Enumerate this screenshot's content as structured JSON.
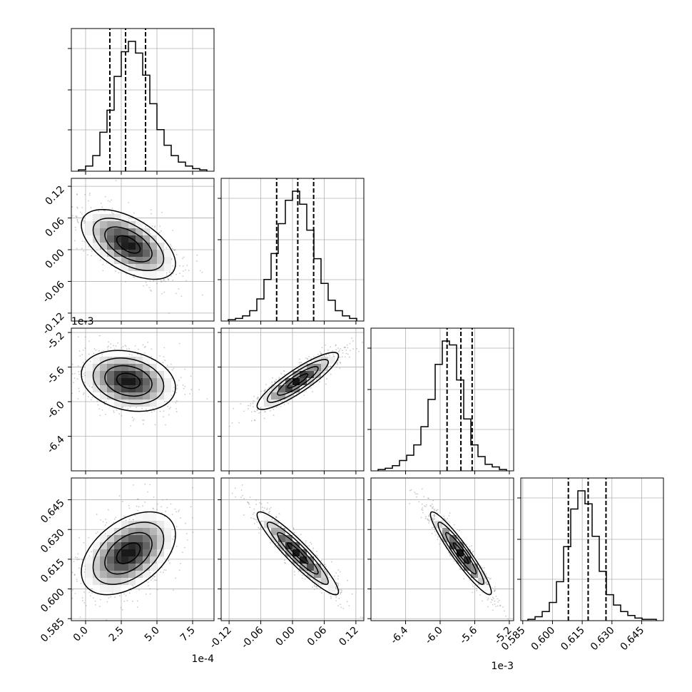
{
  "chart_data": {
    "type": "corner",
    "grid": true,
    "params": [
      {
        "ticks": [
          "0.0",
          "2.5",
          "5.0",
          "7.5"
        ],
        "tick_values": [
          0.0,
          2.5,
          5.0,
          7.5
        ],
        "range": [
          -1.0,
          9.0
        ],
        "offset_text": "1e-4",
        "quantiles": [
          1.7,
          2.8,
          4.2
        ],
        "hist": [
          0.01,
          0.04,
          0.12,
          0.3,
          0.47,
          0.73,
          0.92,
          1.0,
          0.91,
          0.74,
          0.52,
          0.32,
          0.2,
          0.12,
          0.07,
          0.04,
          0.02,
          0.01
        ]
      },
      {
        "ticks": [
          "-0.12",
          "-0.06",
          "0.00",
          "0.06",
          "0.12"
        ],
        "tick_values": [
          -0.12,
          -0.06,
          0.0,
          0.06,
          0.12
        ],
        "range": [
          -0.135,
          0.135
        ],
        "offset_text": "",
        "quantiles": [
          -0.03,
          0.01,
          0.04
        ],
        "hist": [
          0.01,
          0.02,
          0.04,
          0.08,
          0.17,
          0.32,
          0.52,
          0.75,
          0.93,
          1.0,
          0.9,
          0.7,
          0.48,
          0.29,
          0.16,
          0.08,
          0.04,
          0.02
        ]
      },
      {
        "ticks": [
          "-6.4",
          "-6.0",
          "-5.6",
          "-5.2"
        ],
        "tick_values": [
          -6.4,
          -6.0,
          -5.6,
          -5.2
        ],
        "range": [
          -6.8,
          -5.15
        ],
        "offset_text": "1e-3",
        "quantiles": [
          -5.92,
          -5.76,
          -5.63
        ],
        "hist": [
          0.01,
          0.02,
          0.04,
          0.08,
          0.12,
          0.2,
          0.34,
          0.55,
          0.82,
          1.0,
          0.97,
          0.7,
          0.4,
          0.2,
          0.11,
          0.05,
          0.03,
          0.01
        ]
      },
      {
        "ticks": [
          "0.585",
          "0.600",
          "0.615",
          "0.630",
          "0.645"
        ],
        "tick_values": [
          0.585,
          0.6,
          0.615,
          0.63,
          0.645
        ],
        "range": [
          0.584,
          0.656
        ],
        "offset_text": "",
        "quantiles": [
          0.608,
          0.618,
          0.627
        ],
        "hist": [
          0.01,
          0.03,
          0.07,
          0.14,
          0.3,
          0.57,
          0.86,
          1.0,
          0.9,
          0.65,
          0.38,
          0.2,
          0.12,
          0.07,
          0.04,
          0.02,
          0.01,
          0.01
        ]
      }
    ],
    "pairs": [
      {
        "row": 1,
        "col": 0,
        "mean": [
          3.0,
          0.01
        ],
        "sd": [
          1.5,
          0.03
        ],
        "rho": -0.55
      },
      {
        "row": 2,
        "col": 0,
        "mean": [
          3.0,
          -5.76
        ],
        "sd": [
          1.5,
          0.16
        ],
        "rho": -0.22
      },
      {
        "row": 2,
        "col": 1,
        "mean": [
          0.01,
          -5.76
        ],
        "sd": [
          0.035,
          0.15
        ],
        "rho": 0.88
      },
      {
        "row": 3,
        "col": 0,
        "mean": [
          3.0,
          0.618
        ],
        "sd": [
          1.5,
          0.0095
        ],
        "rho": 0.45
      },
      {
        "row": 3,
        "col": 1,
        "mean": [
          0.01,
          0.618
        ],
        "sd": [
          0.035,
          0.0095
        ],
        "rho": -0.93
      },
      {
        "row": 3,
        "col": 2,
        "mean": [
          -5.76,
          0.618
        ],
        "sd": [
          0.16,
          0.0095
        ],
        "rho": -0.94
      }
    ]
  }
}
